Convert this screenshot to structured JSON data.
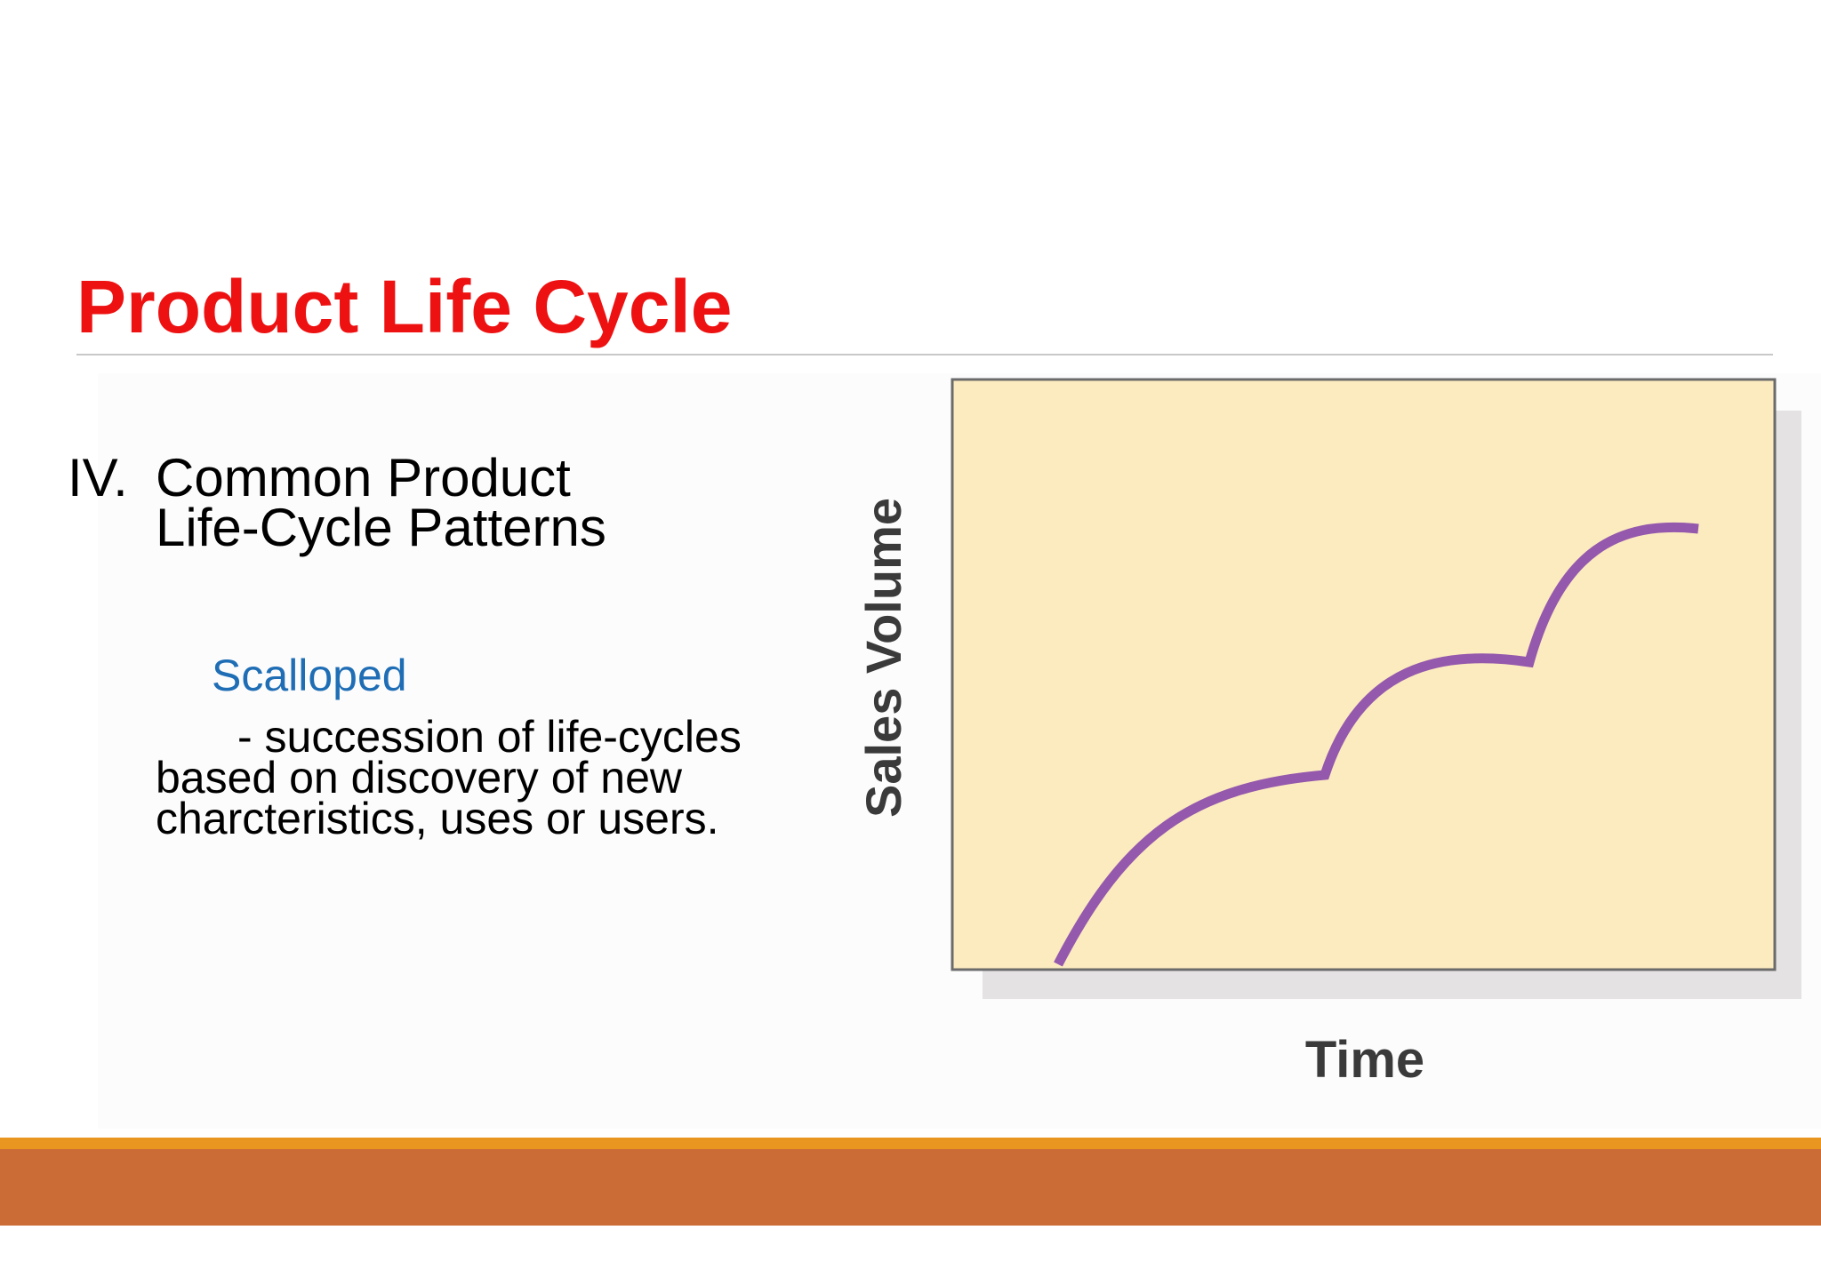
{
  "slide": {
    "title": "Product Life Cycle",
    "outline_number": "IV.",
    "outline_line1": "Common Product",
    "outline_line2": "Life-Cycle Patterns",
    "pattern_name": "Scalloped",
    "description_line1": "- succession of life-cycles",
    "description_line2": "based on discovery of  new",
    "description_line3": "charcteristics, uses or users."
  },
  "figure": {
    "y_axis_label": "Sales Volume",
    "x_axis_label": "Time"
  },
  "colors": {
    "title": "#ee1111",
    "pattern_name": "#1f6eb5",
    "plot_fill": "#fcebbf",
    "plot_border": "#6b6b6b",
    "plot_shadow": "#e4e2e2",
    "curve": "#9458ad",
    "band_top": "#e8961f",
    "band_main": "#cb6c36"
  }
}
